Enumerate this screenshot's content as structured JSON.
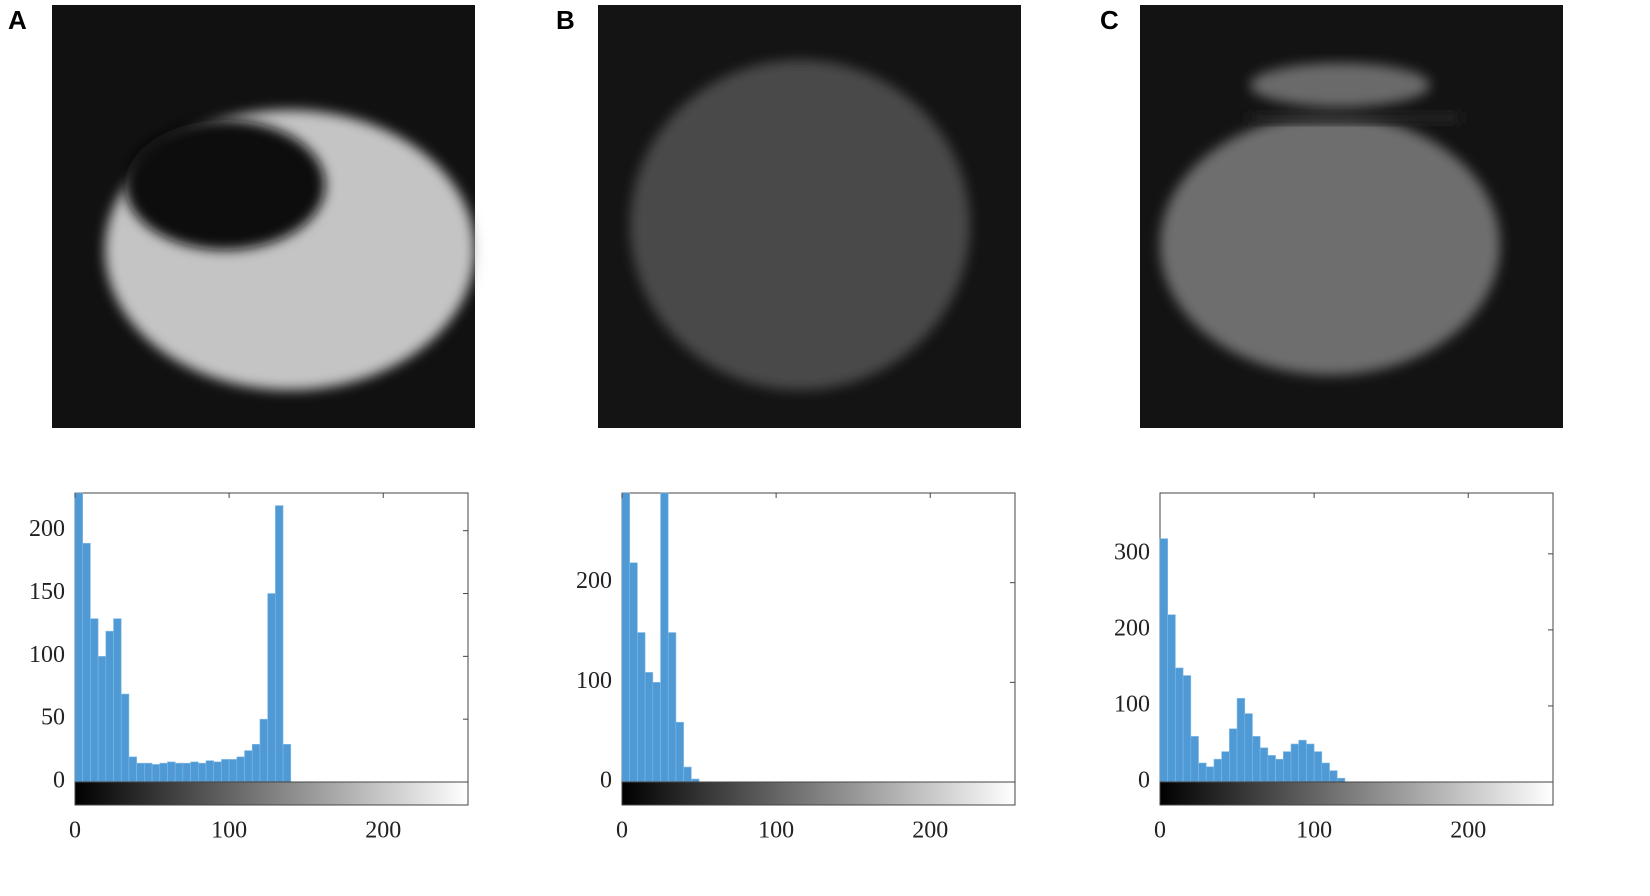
{
  "panels": [
    "A",
    "B",
    "C"
  ],
  "chart_data": [
    {
      "type": "histogram",
      "color": "#3d8fd1",
      "bins": [
        0,
        5,
        10,
        15,
        20,
        25,
        30,
        35,
        40,
        45,
        50,
        55,
        60,
        65,
        70,
        75,
        80,
        85,
        90,
        95,
        100,
        105,
        110,
        115,
        120,
        125,
        130,
        135,
        140
      ],
      "values": [
        230,
        190,
        130,
        100,
        120,
        130,
        70,
        20,
        15,
        15,
        14,
        15,
        16,
        15,
        15,
        16,
        15,
        17,
        16,
        18,
        18,
        20,
        25,
        30,
        50,
        150,
        220,
        30
      ],
      "xlim": [
        0,
        255
      ],
      "xticks": [
        0,
        100,
        200
      ],
      "ylim": [
        0,
        230
      ],
      "yticks": [
        0,
        50,
        100,
        150,
        200
      ]
    },
    {
      "type": "histogram",
      "color": "#3d8fd1",
      "bins": [
        0,
        5,
        10,
        15,
        20,
        25,
        30,
        35,
        40,
        45,
        50
      ],
      "values": [
        290,
        220,
        150,
        110,
        100,
        290,
        150,
        60,
        15,
        3
      ],
      "xlim": [
        0,
        255
      ],
      "xticks": [
        0,
        100,
        200
      ],
      "ylim": [
        0,
        290
      ],
      "yticks": [
        0,
        100,
        200
      ]
    },
    {
      "type": "histogram",
      "color": "#3d8fd1",
      "bins": [
        0,
        5,
        10,
        15,
        20,
        25,
        30,
        35,
        40,
        45,
        50,
        55,
        60,
        65,
        70,
        75,
        80,
        85,
        90,
        95,
        100,
        105,
        110,
        115,
        120
      ],
      "values": [
        320,
        220,
        150,
        140,
        60,
        25,
        20,
        30,
        40,
        70,
        110,
        90,
        60,
        45,
        35,
        30,
        40,
        50,
        55,
        50,
        40,
        25,
        15,
        5
      ],
      "xlim": [
        0,
        255
      ],
      "xticks": [
        0,
        100,
        200
      ],
      "ylim": [
        0,
        380
      ],
      "yticks": [
        0,
        100,
        200,
        300
      ]
    }
  ]
}
